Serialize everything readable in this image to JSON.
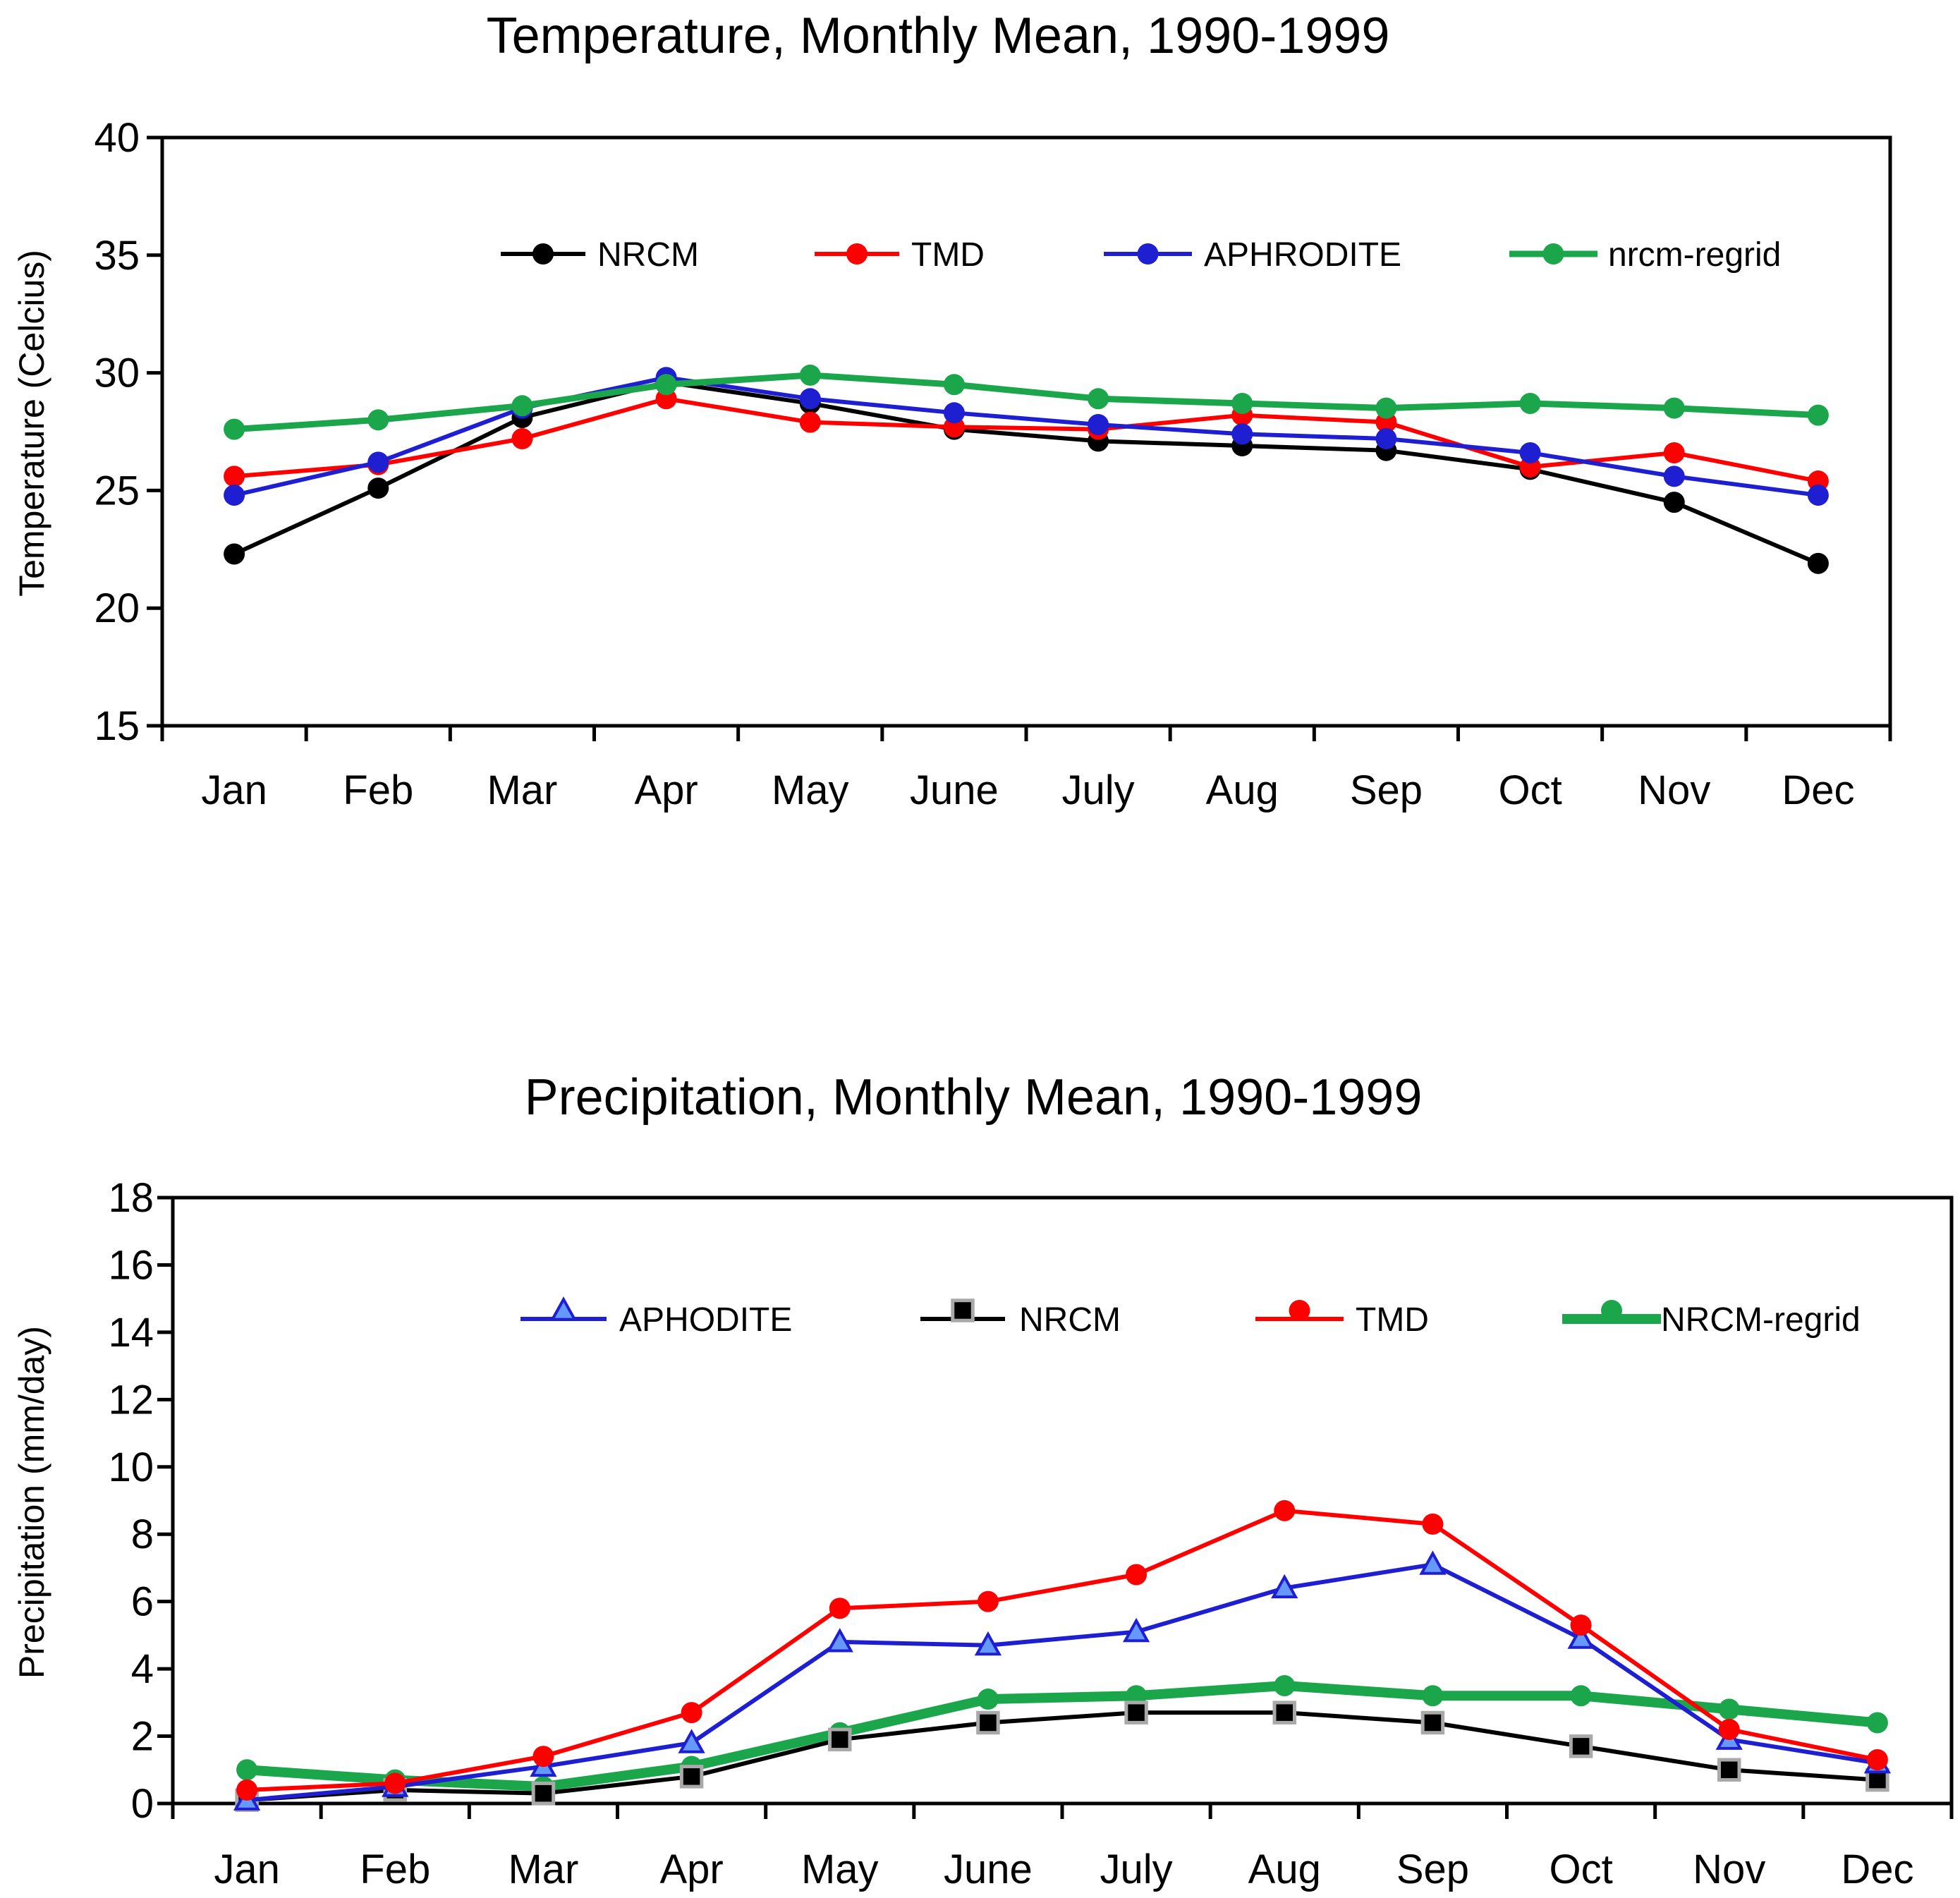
{
  "chart_data": [
    {
      "type": "line",
      "title": "Temperature, Monthly Mean, 1990-1999",
      "xlabel": "",
      "ylabel": "Temperature (Celcius)",
      "ylim": [
        15,
        40
      ],
      "yticks": [
        "15",
        "20",
        "25",
        "30",
        "35",
        "40"
      ],
      "categories": [
        "Jan",
        "Feb",
        "Mar",
        "Apr",
        "May",
        "June",
        "July",
        "Aug",
        "Sep",
        "Oct",
        "Nov",
        "Dec"
      ],
      "legend_position": "top",
      "series": [
        {
          "name": "NRCM",
          "color": "#000000",
          "marker": "circle",
          "values": [
            22.3,
            25.1,
            28.1,
            29.6,
            28.7,
            27.6,
            27.1,
            26.9,
            26.7,
            25.9,
            24.5,
            21.9
          ]
        },
        {
          "name": "TMD",
          "color": "#ff0000",
          "marker": "circle",
          "values": [
            25.6,
            26.1,
            27.2,
            28.9,
            27.9,
            27.7,
            27.6,
            28.2,
            27.9,
            26.0,
            26.6,
            25.4
          ]
        },
        {
          "name": "APHRODITE",
          "color": "#1f1fd2",
          "marker": "circle",
          "values": [
            24.8,
            26.2,
            28.5,
            29.8,
            28.9,
            28.3,
            27.8,
            27.4,
            27.2,
            26.6,
            25.6,
            24.8
          ]
        },
        {
          "name": "nrcm-regrid",
          "color": "#1ca64b",
          "marker": "circle",
          "values": [
            27.6,
            28.0,
            28.6,
            29.5,
            29.9,
            29.5,
            28.9,
            28.7,
            28.5,
            28.7,
            28.5,
            28.2
          ]
        }
      ]
    },
    {
      "type": "line",
      "title": "Precipitation, Monthly Mean, 1990-1999",
      "xlabel": "",
      "ylabel": "Precipitation (mm/day)",
      "ylim": [
        0,
        18
      ],
      "yticks": [
        "0",
        "2",
        "4",
        "6",
        "8",
        "10",
        "12",
        "14",
        "16",
        "18"
      ],
      "categories": [
        "Jan",
        "Feb",
        "Mar",
        "Apr",
        "May",
        "June",
        "July",
        "Aug",
        "Sep",
        "Oct",
        "Nov",
        "Dec"
      ],
      "legend_position": "top",
      "series": [
        {
          "name": "APHODITE",
          "color": "#1f1fd2",
          "marker": "triangle",
          "values": [
            0.1,
            0.5,
            1.1,
            1.8,
            4.8,
            4.7,
            5.1,
            6.4,
            7.1,
            4.9,
            1.9,
            1.2
          ]
        },
        {
          "name": "NRCM",
          "color": "#000000",
          "marker": "square",
          "values": [
            0.1,
            0.4,
            0.3,
            0.8,
            1.9,
            2.4,
            2.7,
            2.7,
            2.4,
            1.7,
            1.0,
            0.7
          ]
        },
        {
          "name": "TMD",
          "color": "#ff0000",
          "marker": "circle",
          "values": [
            0.4,
            0.6,
            1.4,
            2.7,
            5.8,
            6.0,
            6.8,
            8.7,
            8.3,
            5.3,
            2.2,
            1.3
          ]
        },
        {
          "name": "NRCM-regrid",
          "color": "#1ca64b",
          "marker": "circle",
          "values": [
            1.0,
            0.7,
            0.5,
            1.1,
            2.1,
            3.1,
            3.2,
            3.5,
            3.2,
            3.2,
            2.8,
            2.4
          ]
        }
      ]
    }
  ]
}
